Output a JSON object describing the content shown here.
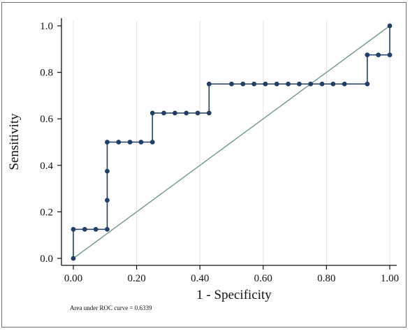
{
  "chart_data": {
    "type": "line",
    "xlabel": "1 - Specificity",
    "ylabel": "Sensitivity",
    "xlim": [
      0,
      1
    ],
    "ylim": [
      0,
      1
    ],
    "x_ticks": [
      "0.00",
      "0.20",
      "0.40",
      "0.60",
      "0.80",
      "1.00"
    ],
    "y_ticks": [
      "0.0",
      "0.2",
      "0.4",
      "0.6",
      "0.8",
      "1.0"
    ],
    "grid": "vertical",
    "annotation": "Area under ROC curve = 0.6339",
    "series": [
      {
        "type": "step-line-with-markers",
        "color": "#1f3f66",
        "points": [
          [
            0.0,
            0.0
          ],
          [
            0.0,
            0.125
          ],
          [
            0.036,
            0.125
          ],
          [
            0.071,
            0.125
          ],
          [
            0.107,
            0.125
          ],
          [
            0.107,
            0.25
          ],
          [
            0.107,
            0.375
          ],
          [
            0.107,
            0.5
          ],
          [
            0.143,
            0.5
          ],
          [
            0.179,
            0.5
          ],
          [
            0.214,
            0.5
          ],
          [
            0.25,
            0.5
          ],
          [
            0.25,
            0.625
          ],
          [
            0.286,
            0.625
          ],
          [
            0.321,
            0.625
          ],
          [
            0.357,
            0.625
          ],
          [
            0.393,
            0.625
          ],
          [
            0.429,
            0.625
          ],
          [
            0.429,
            0.75
          ],
          [
            0.5,
            0.75
          ],
          [
            0.536,
            0.75
          ],
          [
            0.571,
            0.75
          ],
          [
            0.607,
            0.75
          ],
          [
            0.643,
            0.75
          ],
          [
            0.679,
            0.75
          ],
          [
            0.714,
            0.75
          ],
          [
            0.75,
            0.75
          ],
          [
            0.786,
            0.75
          ],
          [
            0.821,
            0.75
          ],
          [
            0.857,
            0.75
          ],
          [
            0.929,
            0.75
          ],
          [
            0.929,
            0.875
          ],
          [
            0.964,
            0.875
          ],
          [
            1.0,
            0.875
          ],
          [
            1.0,
            1.0
          ]
        ]
      },
      {
        "type": "reference-line",
        "color": "#6f9a8d",
        "points": [
          [
            0,
            0
          ],
          [
            1,
            1
          ]
        ]
      }
    ]
  }
}
